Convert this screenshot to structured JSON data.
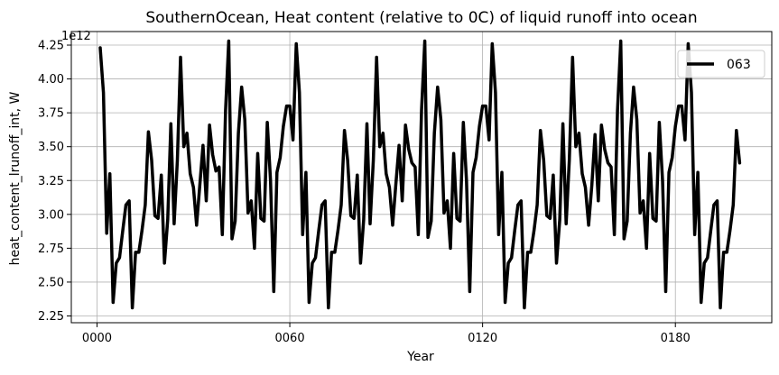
{
  "chart_data": {
    "type": "line",
    "title": "SouthernOcean, Heat content (relative to 0C) of liquid runoff into ocean",
    "xlabel": "Year",
    "ylabel": "heat_content_lrunoff_int, W",
    "y_multiplier_label": "1e12",
    "xlim": [
      -8,
      210
    ],
    "ylim": [
      2.2,
      4.35
    ],
    "x_ticks": [
      0,
      60,
      120,
      180
    ],
    "x_tick_labels": [
      "0000",
      "0060",
      "0120",
      "0180"
    ],
    "y_ticks": [
      2.25,
      2.5,
      2.75,
      3.0,
      3.25,
      3.5,
      3.75,
      4.0,
      4.25
    ],
    "y_tick_labels": [
      "2.25",
      "2.50",
      "2.75",
      "3.00",
      "3.25",
      "3.50",
      "3.75",
      "4.00",
      "4.25"
    ],
    "grid": true,
    "legend_position": "top-right",
    "series": [
      {
        "name": "063",
        "color": "#000000",
        "x": [
          1,
          2,
          3,
          4,
          5,
          6,
          7,
          8,
          9,
          10,
          11,
          12,
          13,
          14,
          15,
          16,
          17,
          18,
          19,
          20,
          21,
          22,
          23,
          24,
          25,
          26,
          27,
          28,
          29,
          30,
          31,
          32,
          33,
          34,
          35,
          36,
          37,
          38,
          39,
          40,
          41,
          42,
          43,
          44,
          45,
          46,
          47,
          48,
          49,
          50,
          51,
          52,
          53,
          54,
          55,
          56,
          57,
          58,
          59,
          60,
          61,
          62,
          63,
          64,
          65,
          66,
          67,
          68,
          69,
          70,
          71,
          72,
          73,
          74,
          75,
          76,
          77,
          78,
          79,
          80,
          81,
          82,
          83,
          84,
          85,
          86,
          87,
          88,
          89,
          90,
          91,
          92,
          93,
          94,
          95,
          96,
          97,
          98,
          99,
          100,
          101,
          102,
          103,
          104,
          105,
          106,
          107,
          108,
          109,
          110,
          111,
          112,
          113,
          114,
          115,
          116,
          117,
          118,
          119,
          120,
          121,
          122,
          123,
          124,
          125,
          126,
          127,
          128,
          129,
          130,
          131,
          132,
          133,
          134,
          135,
          136,
          137,
          138,
          139,
          140,
          141,
          142,
          143,
          144,
          145,
          146,
          147,
          148,
          149,
          150,
          151,
          152,
          153,
          154,
          155,
          156,
          157,
          158,
          159,
          160,
          161,
          162,
          163,
          164,
          165,
          166,
          167,
          168,
          169,
          170,
          171,
          172,
          173,
          174,
          175,
          176,
          177,
          178,
          179,
          180,
          181,
          182,
          183,
          184,
          185,
          186,
          187,
          188,
          189,
          190,
          191,
          192,
          193,
          194,
          195,
          196,
          197,
          198,
          199,
          200
        ],
        "values": [
          4.23,
          3.9,
          2.86,
          3.3,
          2.35,
          2.64,
          2.68,
          2.88,
          3.07,
          3.1,
          2.31,
          2.72,
          2.72,
          2.88,
          3.07,
          3.61,
          3.4,
          2.99,
          2.97,
          3.29,
          2.64,
          2.96,
          3.67,
          2.93,
          3.4,
          4.16,
          3.5,
          3.6,
          3.3,
          3.2,
          2.92,
          3.22,
          3.51,
          3.1,
          3.66,
          3.44,
          3.32,
          3.35,
          2.85,
          3.77,
          4.28,
          2.82,
          2.95,
          3.6,
          3.94,
          3.7,
          3.01,
          3.1,
          2.75,
          3.45,
          2.97,
          2.95,
          3.68,
          3.25,
          2.43,
          3.31,
          3.42,
          3.65,
          3.8,
          3.8,
          3.55,
          4.26,
          3.9,
          2.85,
          3.31,
          2.35,
          2.64,
          2.68,
          2.88,
          3.07,
          3.1,
          2.31,
          2.72,
          2.72,
          2.88,
          3.07,
          3.62,
          3.4,
          2.99,
          2.97,
          3.29,
          2.64,
          2.96,
          3.67,
          2.93,
          3.4,
          4.16,
          3.5,
          3.6,
          3.3,
          3.2,
          2.92,
          3.22,
          3.51,
          3.1,
          3.66,
          3.48,
          3.38,
          3.35,
          2.85,
          3.77,
          4.28,
          2.83,
          2.95,
          3.6,
          3.94,
          3.7,
          3.01,
          3.1,
          2.75,
          3.45,
          2.97,
          2.95,
          3.68,
          3.25,
          2.43,
          3.31,
          3.42,
          3.65,
          3.8,
          3.8,
          3.55,
          4.26,
          3.9,
          2.85,
          3.31,
          2.35,
          2.64,
          2.68,
          2.88,
          3.07,
          3.1,
          2.31,
          2.72,
          2.72,
          2.88,
          3.07,
          3.62,
          3.4,
          2.99,
          2.97,
          3.29,
          2.64,
          2.96,
          3.67,
          2.93,
          3.4,
          4.16,
          3.5,
          3.6,
          3.3,
          3.2,
          2.92,
          3.22,
          3.59,
          3.1,
          3.66,
          3.48,
          3.38,
          3.35,
          2.85,
          3.77,
          4.28,
          2.82,
          2.95,
          3.6,
          3.94,
          3.7,
          3.01,
          3.1,
          2.75,
          3.45,
          2.97,
          2.95,
          3.68,
          3.25,
          2.43,
          3.31,
          3.42,
          3.65,
          3.8,
          3.8,
          3.55,
          4.26,
          3.9,
          2.85,
          3.31,
          2.35,
          2.64,
          2.68,
          2.88,
          3.07,
          3.1,
          2.31,
          2.72,
          2.72,
          2.88,
          3.07,
          3.62,
          3.38
        ]
      }
    ]
  }
}
